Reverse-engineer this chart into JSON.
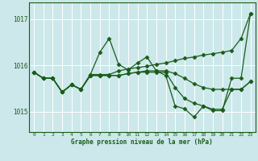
{
  "xlabel": "Graphe pression niveau de la mer (hPa)",
  "x": [
    0,
    1,
    2,
    3,
    4,
    5,
    6,
    7,
    8,
    9,
    10,
    11,
    12,
    13,
    14,
    15,
    16,
    17,
    18,
    19,
    20,
    21,
    22,
    23
  ],
  "line1": [
    1015.85,
    1015.72,
    1015.72,
    1015.42,
    1015.58,
    1015.48,
    1015.8,
    1016.28,
    1016.58,
    1016.02,
    1015.9,
    1016.05,
    1016.18,
    1015.88,
    1015.78,
    1015.12,
    1015.06,
    1014.88,
    1015.12,
    1015.02,
    1015.02,
    1015.72,
    1015.72,
    1017.12
  ],
  "line2": [
    1015.85,
    1015.72,
    1015.72,
    1015.42,
    1015.58,
    1015.48,
    1015.8,
    1015.8,
    1015.8,
    1015.88,
    1015.92,
    1015.95,
    1015.98,
    1016.02,
    1016.05,
    1016.1,
    1016.15,
    1016.18,
    1016.22,
    1016.25,
    1016.28,
    1016.32,
    1016.58,
    1017.12
  ],
  "line3": [
    1015.85,
    1015.72,
    1015.72,
    1015.42,
    1015.58,
    1015.48,
    1015.78,
    1015.78,
    1015.78,
    1015.78,
    1015.82,
    1015.85,
    1015.88,
    1015.88,
    1015.88,
    1015.82,
    1015.72,
    1015.6,
    1015.52,
    1015.48,
    1015.48,
    1015.48,
    1015.48,
    1015.65
  ],
  "line4": [
    1015.85,
    1015.72,
    1015.72,
    1015.42,
    1015.58,
    1015.48,
    1015.78,
    1015.78,
    1015.78,
    1015.78,
    1015.82,
    1015.85,
    1015.85,
    1015.85,
    1015.85,
    1015.52,
    1015.28,
    1015.18,
    1015.12,
    1015.05,
    1015.05,
    1015.48,
    1015.48,
    1015.65
  ],
  "bg_color": "#cce8ea",
  "line_color": "#1a5c1a",
  "grid_color": "#aad4d6",
  "grid_color_minor": "#ffffff",
  "ylim": [
    1014.55,
    1017.35
  ],
  "yticks": [
    1015,
    1016,
    1017
  ],
  "xlim": [
    -0.5,
    23.5
  ]
}
